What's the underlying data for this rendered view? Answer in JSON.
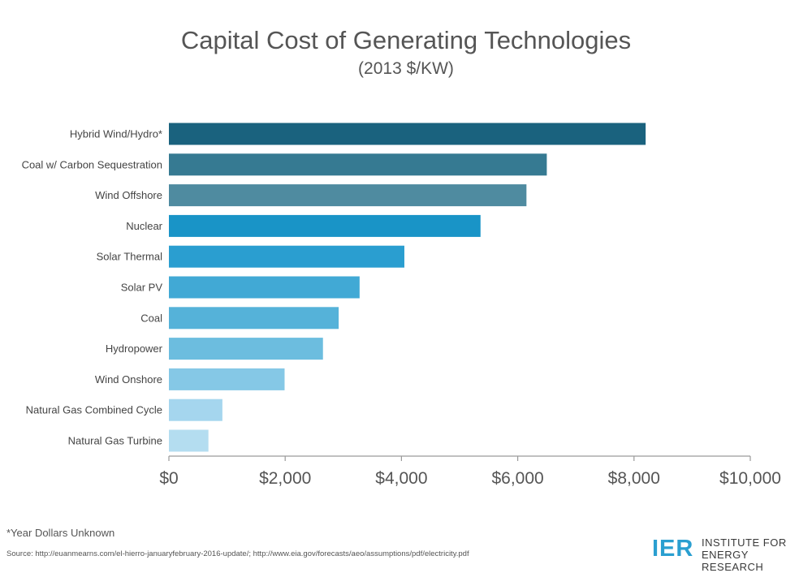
{
  "chart_data": {
    "type": "bar",
    "orientation": "horizontal",
    "title": "Capital Cost of Generating Technologies",
    "subtitle": "(2013 $/KW)",
    "categories": [
      "Hybrid Wind/Hydro*",
      "Coal w/ Carbon Sequestration",
      "Wind Offshore",
      "Nuclear",
      "Solar Thermal",
      "Solar PV",
      "Coal",
      "Hydropower",
      "Wind Onshore",
      "Natural Gas Combined Cycle",
      "Natural Gas Turbine"
    ],
    "values": [
      8200,
      6500,
      6150,
      5360,
      4050,
      3280,
      2920,
      2650,
      1990,
      920,
      680
    ],
    "colors": [
      "#1a627e",
      "#367a92",
      "#4f8ba0",
      "#1994c7",
      "#2a9ed0",
      "#41a9d5",
      "#55b2d9",
      "#6cbddf",
      "#85c8e6",
      "#a5d6ee",
      "#b4ddf0"
    ],
    "xlim": [
      0,
      10000
    ],
    "xticks": [
      0,
      2000,
      4000,
      6000,
      8000,
      10000
    ],
    "xtick_labels": [
      "$0",
      "$2,000",
      "$4,000",
      "$6,000",
      "$8,000",
      "$10,000"
    ],
    "grid": false,
    "legend": "none"
  },
  "footnote": "*Year Dollars Unknown",
  "source": "Source: http://euanmearns.com/el-hierro-januaryfebruary-2016-update/; http://www.eia.gov/forecasts/aeo/assumptions/pdf/electricity.pdf",
  "logo": {
    "mark": "IER",
    "line1": "INSTITUTE FOR",
    "line2": "ENERGY RESEARCH",
    "color": "#2a9fd0"
  }
}
